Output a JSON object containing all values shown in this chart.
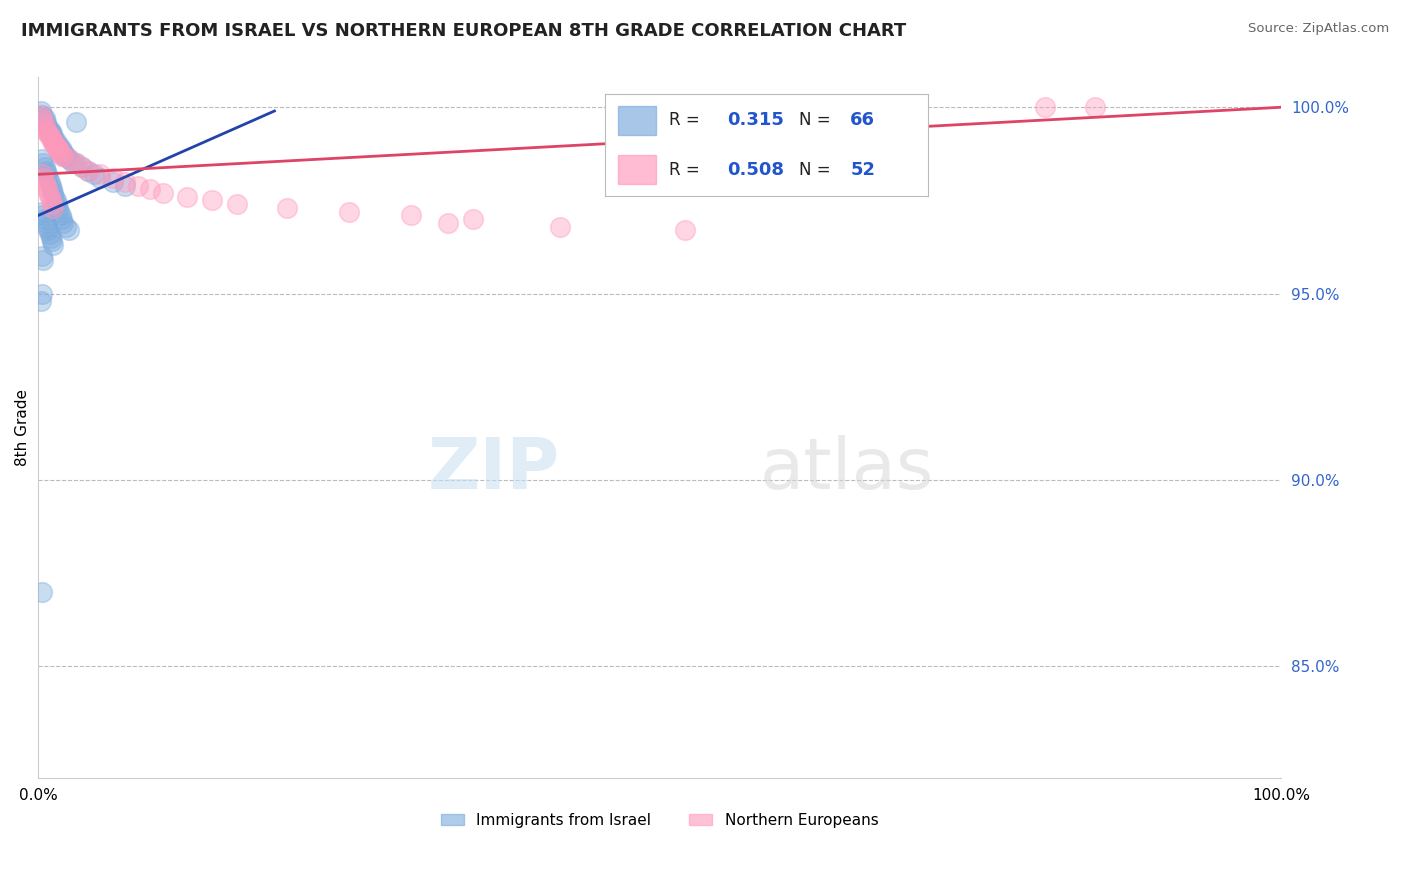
{
  "title": "IMMIGRANTS FROM ISRAEL VS NORTHERN EUROPEAN 8TH GRADE CORRELATION CHART",
  "source_text": "Source: ZipAtlas.com",
  "ylabel": "8th Grade",
  "xlim": [
    0.0,
    1.0
  ],
  "ylim": [
    0.82,
    1.008
  ],
  "x_ticks": [
    0.0,
    0.2,
    0.4,
    0.6,
    0.8,
    1.0
  ],
  "x_tick_labels": [
    "0.0%",
    "",
    "",
    "",
    "",
    "100.0%"
  ],
  "y_ticks_right": [
    0.85,
    0.9,
    0.95,
    1.0
  ],
  "y_tick_labels_right": [
    "85.0%",
    "90.0%",
    "95.0%",
    "100.0%"
  ],
  "grid_color": "#bbbbbb",
  "background_color": "#ffffff",
  "blue_color": "#7aaadd",
  "pink_color": "#ff99bb",
  "blue_line_color": "#2244aa",
  "pink_line_color": "#dd4466",
  "legend_R_blue": "0.315",
  "legend_N_blue": "66",
  "legend_R_pink": "0.508",
  "legend_N_pink": "52",
  "legend_label_blue": "Immigrants from Israel",
  "legend_label_pink": "Northern Europeans",
  "watermark": "ZIPatlas",
  "blue_x": [
    0.002,
    0.003,
    0.004,
    0.005,
    0.006,
    0.007,
    0.008,
    0.009,
    0.01,
    0.011,
    0.012,
    0.013,
    0.014,
    0.015,
    0.016,
    0.017,
    0.018,
    0.019,
    0.02,
    0.021,
    0.022,
    0.025,
    0.028,
    0.03,
    0.035,
    0.04,
    0.045,
    0.05,
    0.06,
    0.07,
    0.003,
    0.004,
    0.005,
    0.006,
    0.007,
    0.008,
    0.009,
    0.01,
    0.011,
    0.012,
    0.013,
    0.014,
    0.015,
    0.016,
    0.017,
    0.018,
    0.019,
    0.02,
    0.022,
    0.025,
    0.003,
    0.004,
    0.005,
    0.006,
    0.007,
    0.008,
    0.009,
    0.01,
    0.011,
    0.012,
    0.003,
    0.004,
    0.003,
    0.002,
    0.003,
    0.03
  ],
  "blue_y": [
    0.999,
    0.998,
    0.997,
    0.997,
    0.996,
    0.995,
    0.994,
    0.994,
    0.993,
    0.993,
    0.992,
    0.991,
    0.991,
    0.99,
    0.99,
    0.989,
    0.989,
    0.988,
    0.988,
    0.987,
    0.987,
    0.986,
    0.985,
    0.985,
    0.984,
    0.983,
    0.982,
    0.981,
    0.98,
    0.979,
    0.986,
    0.985,
    0.984,
    0.983,
    0.982,
    0.981,
    0.98,
    0.979,
    0.978,
    0.977,
    0.976,
    0.975,
    0.974,
    0.973,
    0.972,
    0.971,
    0.97,
    0.969,
    0.968,
    0.967,
    0.972,
    0.971,
    0.97,
    0.969,
    0.968,
    0.967,
    0.966,
    0.965,
    0.964,
    0.963,
    0.96,
    0.959,
    0.95,
    0.948,
    0.87,
    0.996
  ],
  "pink_x": [
    0.002,
    0.003,
    0.004,
    0.005,
    0.006,
    0.007,
    0.008,
    0.009,
    0.01,
    0.011,
    0.012,
    0.013,
    0.014,
    0.015,
    0.016,
    0.017,
    0.018,
    0.019,
    0.02,
    0.025,
    0.03,
    0.035,
    0.04,
    0.05,
    0.06,
    0.07,
    0.08,
    0.09,
    0.1,
    0.12,
    0.14,
    0.16,
    0.2,
    0.25,
    0.3,
    0.35,
    0.003,
    0.004,
    0.005,
    0.006,
    0.007,
    0.008,
    0.009,
    0.01,
    0.011,
    0.012,
    0.6,
    0.81,
    0.85,
    0.33,
    0.42,
    0.52
  ],
  "pink_y": [
    0.998,
    0.997,
    0.996,
    0.995,
    0.994,
    0.993,
    0.993,
    0.992,
    0.992,
    0.991,
    0.991,
    0.99,
    0.99,
    0.989,
    0.989,
    0.988,
    0.988,
    0.987,
    0.987,
    0.986,
    0.985,
    0.984,
    0.983,
    0.982,
    0.981,
    0.98,
    0.979,
    0.978,
    0.977,
    0.976,
    0.975,
    0.974,
    0.973,
    0.972,
    0.971,
    0.97,
    0.982,
    0.981,
    0.98,
    0.979,
    0.978,
    0.977,
    0.976,
    0.975,
    0.974,
    0.973,
    1.0,
    1.0,
    1.0,
    0.969,
    0.968,
    0.967
  ],
  "blue_line_x": [
    0.0,
    0.19
  ],
  "blue_line_y": [
    0.971,
    0.999
  ],
  "pink_line_x": [
    0.0,
    1.0
  ],
  "pink_line_y": [
    0.982,
    1.0
  ]
}
